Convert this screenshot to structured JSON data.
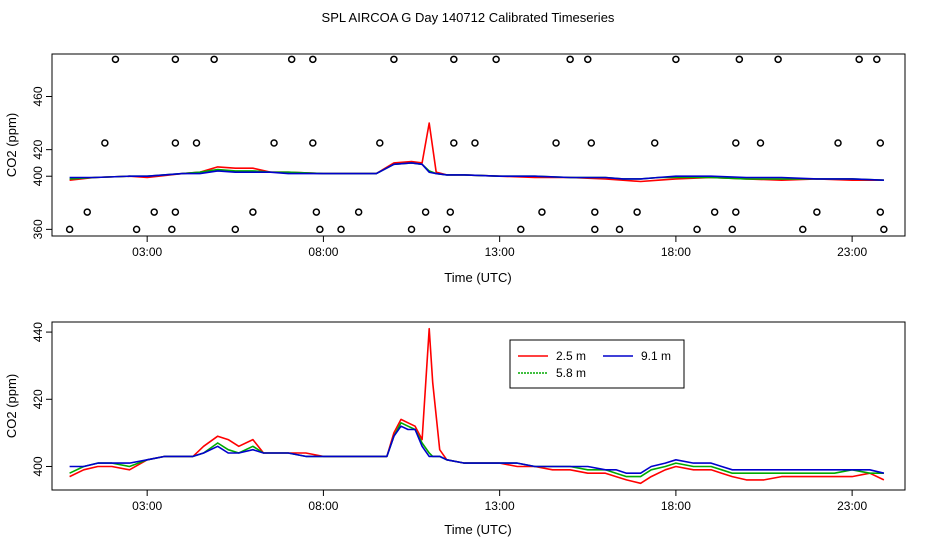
{
  "figure": {
    "title": "SPL AIRCOA G  Day 140712  Calibrated Timeseries"
  },
  "chart_data": [
    {
      "type": "scatter+line",
      "xlabel": "Time (UTC)",
      "ylabel": "CO2 (ppm)",
      "xlim": [
        0.3,
        24.5
      ],
      "ylim": [
        355,
        492
      ],
      "xticks": [
        {
          "value": 3,
          "label": "03:00"
        },
        {
          "value": 8,
          "label": "08:00"
        },
        {
          "value": 13,
          "label": "13:00"
        },
        {
          "value": 18,
          "label": "18:00"
        },
        {
          "value": 23,
          "label": "23:00"
        }
      ],
      "yticks": [
        {
          "value": 360,
          "label": "360"
        },
        {
          "value": 400,
          "label": "400"
        },
        {
          "value": 420,
          "label": "420"
        },
        {
          "value": 460,
          "label": "460"
        }
      ],
      "calibration_points": [
        [
          0.8,
          360
        ],
        [
          1.3,
          373
        ],
        [
          1.8,
          425
        ],
        [
          2.1,
          488
        ],
        [
          2.7,
          360
        ],
        [
          3.2,
          373
        ],
        [
          3.7,
          360
        ],
        [
          3.8,
          373
        ],
        [
          3.8,
          425
        ],
        [
          3.8,
          488
        ],
        [
          4.4,
          425
        ],
        [
          4.9,
          488
        ],
        [
          5.5,
          360
        ],
        [
          6.0,
          373
        ],
        [
          6.6,
          425
        ],
        [
          7.1,
          488
        ],
        [
          7.7,
          488
        ],
        [
          7.7,
          425
        ],
        [
          7.8,
          373
        ],
        [
          7.9,
          360
        ],
        [
          8.5,
          360
        ],
        [
          9.0,
          373
        ],
        [
          9.6,
          425
        ],
        [
          10.0,
          488
        ],
        [
          10.5,
          360
        ],
        [
          10.9,
          373
        ],
        [
          11.5,
          360
        ],
        [
          11.6,
          373
        ],
        [
          11.7,
          425
        ],
        [
          11.7,
          488
        ],
        [
          12.3,
          425
        ],
        [
          12.9,
          488
        ],
        [
          13.6,
          360
        ],
        [
          14.2,
          373
        ],
        [
          14.6,
          425
        ],
        [
          15.0,
          488
        ],
        [
          15.5,
          488
        ],
        [
          15.6,
          425
        ],
        [
          15.7,
          373
        ],
        [
          15.7,
          360
        ],
        [
          16.4,
          360
        ],
        [
          16.9,
          373
        ],
        [
          17.4,
          425
        ],
        [
          18.0,
          488
        ],
        [
          18.6,
          360
        ],
        [
          19.1,
          373
        ],
        [
          19.6,
          360
        ],
        [
          19.7,
          373
        ],
        [
          19.7,
          425
        ],
        [
          19.8,
          488
        ],
        [
          20.4,
          425
        ],
        [
          20.9,
          488
        ],
        [
          21.6,
          360
        ],
        [
          22.0,
          373
        ],
        [
          22.6,
          425
        ],
        [
          23.2,
          488
        ],
        [
          23.7,
          488
        ],
        [
          23.8,
          425
        ],
        [
          23.8,
          373
        ],
        [
          23.9,
          360
        ]
      ],
      "series": [
        {
          "name": "2.5 m",
          "color": "#ff0000",
          "x": [
            0.8,
            1.5,
            2.5,
            3.0,
            4.0,
            4.5,
            5.0,
            5.5,
            6.0,
            6.5,
            7.0,
            8.0,
            9.0,
            9.5,
            10.0,
            10.5,
            10.8,
            11.0,
            11.2,
            11.5,
            12.0,
            13.0,
            14.0,
            15.0,
            16.0,
            16.5,
            17.0,
            17.5,
            18.0,
            19.0,
            20.0,
            21.0,
            22.0,
            23.0,
            23.9
          ],
          "y": [
            397,
            399,
            400,
            399,
            402,
            403,
            407,
            406,
            406,
            403,
            403,
            402,
            402,
            402,
            410,
            411,
            410,
            440,
            403,
            401,
            401,
            400,
            399,
            399,
            398,
            397,
            396,
            397,
            398,
            399,
            398,
            397,
            398,
            397,
            397
          ]
        },
        {
          "name": "5.8 m",
          "color": "#00aa00",
          "x": [
            0.8,
            1.5,
            2.5,
            3.0,
            4.0,
            4.5,
            5.0,
            5.5,
            6.0,
            6.5,
            7.0,
            8.0,
            9.0,
            9.5,
            10.0,
            10.5,
            10.8,
            11.0,
            11.2,
            11.5,
            12.0,
            13.0,
            14.0,
            15.0,
            16.0,
            16.5,
            17.0,
            17.5,
            18.0,
            19.0,
            20.0,
            21.0,
            22.0,
            23.0,
            23.9
          ],
          "y": [
            398,
            399,
            400,
            400,
            402,
            403,
            405,
            404,
            404,
            403,
            403,
            402,
            402,
            402,
            409,
            410,
            409,
            404,
            402,
            401,
            401,
            400,
            400,
            399,
            399,
            398,
            398,
            399,
            399,
            399,
            398,
            398,
            398,
            398,
            397
          ]
        },
        {
          "name": "9.1 m",
          "color": "#0000cc",
          "x": [
            0.8,
            1.5,
            2.5,
            3.0,
            4.0,
            4.5,
            5.0,
            5.5,
            6.0,
            6.5,
            7.0,
            8.0,
            9.0,
            9.5,
            10.0,
            10.5,
            10.8,
            11.0,
            11.2,
            11.5,
            12.0,
            13.0,
            14.0,
            15.0,
            16.0,
            16.5,
            17.0,
            17.5,
            18.0,
            19.0,
            20.0,
            21.0,
            22.0,
            23.0,
            23.9
          ],
          "y": [
            399,
            399,
            400,
            400,
            402,
            402,
            404,
            403,
            403,
            403,
            402,
            402,
            402,
            402,
            409,
            410,
            409,
            403,
            402,
            401,
            401,
            400,
            400,
            399,
            399,
            398,
            398,
            399,
            400,
            400,
            399,
            399,
            398,
            398,
            397
          ]
        }
      ]
    },
    {
      "type": "line",
      "xlabel": "Time (UTC)",
      "ylabel": "CO2 (ppm)",
      "xlim": [
        0.3,
        24.5
      ],
      "ylim": [
        393,
        443
      ],
      "xticks": [
        {
          "value": 3,
          "label": "03:00"
        },
        {
          "value": 8,
          "label": "08:00"
        },
        {
          "value": 13,
          "label": "13:00"
        },
        {
          "value": 18,
          "label": "18:00"
        },
        {
          "value": 23,
          "label": "23:00"
        }
      ],
      "yticks": [
        {
          "value": 400,
          "label": "400"
        },
        {
          "value": 420,
          "label": "420"
        },
        {
          "value": 440,
          "label": "440"
        }
      ],
      "legend": {
        "position": "top-center",
        "entries": [
          "2.5 m",
          "9.1 m",
          "5.8 m"
        ]
      },
      "series": [
        {
          "name": "2.5 m",
          "color": "#ff0000",
          "x": [
            0.8,
            1.2,
            1.6,
            2.0,
            2.5,
            3.0,
            3.5,
            4.0,
            4.3,
            4.6,
            5.0,
            5.3,
            5.6,
            6.0,
            6.3,
            6.6,
            7.0,
            7.5,
            8.0,
            8.5,
            9.0,
            9.5,
            9.8,
            10.0,
            10.2,
            10.4,
            10.6,
            10.8,
            11.0,
            11.1,
            11.3,
            11.5,
            12.0,
            12.5,
            13.0,
            13.5,
            14.0,
            14.5,
            15.0,
            15.5,
            16.0,
            16.3,
            16.6,
            17.0,
            17.3,
            17.7,
            18.0,
            18.5,
            19.0,
            19.3,
            19.6,
            20.0,
            20.5,
            21.0,
            21.5,
            22.0,
            22.5,
            23.0,
            23.5,
            23.9
          ],
          "y": [
            397,
            399,
            400,
            400,
            399,
            402,
            403,
            403,
            403,
            406,
            409,
            408,
            406,
            408,
            404,
            404,
            404,
            404,
            403,
            403,
            403,
            403,
            403,
            410,
            414,
            413,
            412,
            408,
            441,
            425,
            405,
            402,
            401,
            401,
            401,
            400,
            400,
            399,
            399,
            398,
            398,
            397,
            396,
            395,
            397,
            399,
            400,
            399,
            399,
            398,
            397,
            396,
            396,
            397,
            397,
            397,
            397,
            397,
            398,
            396
          ]
        },
        {
          "name": "5.8 m",
          "color": "#00aa00",
          "x": [
            0.8,
            1.2,
            1.6,
            2.0,
            2.5,
            3.0,
            3.5,
            4.0,
            4.3,
            4.6,
            5.0,
            5.3,
            5.6,
            6.0,
            6.3,
            6.6,
            7.0,
            7.5,
            8.0,
            8.5,
            9.0,
            9.5,
            9.8,
            10.0,
            10.2,
            10.4,
            10.6,
            10.8,
            11.0,
            11.1,
            11.3,
            11.5,
            12.0,
            12.5,
            13.0,
            13.5,
            14.0,
            14.5,
            15.0,
            15.5,
            16.0,
            16.3,
            16.6,
            17.0,
            17.3,
            17.7,
            18.0,
            18.5,
            19.0,
            19.3,
            19.6,
            20.0,
            20.5,
            21.0,
            21.5,
            22.0,
            22.5,
            23.0,
            23.5,
            23.9
          ],
          "y": [
            398,
            400,
            401,
            401,
            400,
            402,
            403,
            403,
            403,
            404,
            407,
            405,
            404,
            406,
            404,
            404,
            404,
            403,
            403,
            403,
            403,
            403,
            403,
            409,
            413,
            412,
            411,
            407,
            404,
            403,
            403,
            402,
            401,
            401,
            401,
            401,
            400,
            400,
            400,
            399,
            399,
            398,
            397,
            397,
            399,
            400,
            401,
            400,
            400,
            399,
            398,
            398,
            398,
            398,
            398,
            398,
            398,
            399,
            398,
            398
          ]
        },
        {
          "name": "9.1 m",
          "color": "#0000cc",
          "x": [
            0.8,
            1.2,
            1.6,
            2.0,
            2.5,
            3.0,
            3.5,
            4.0,
            4.3,
            4.6,
            5.0,
            5.3,
            5.6,
            6.0,
            6.3,
            6.6,
            7.0,
            7.5,
            8.0,
            8.5,
            9.0,
            9.5,
            9.8,
            10.0,
            10.2,
            10.4,
            10.6,
            10.8,
            11.0,
            11.1,
            11.3,
            11.5,
            12.0,
            12.5,
            13.0,
            13.5,
            14.0,
            14.5,
            15.0,
            15.5,
            16.0,
            16.3,
            16.6,
            17.0,
            17.3,
            17.7,
            18.0,
            18.5,
            19.0,
            19.3,
            19.6,
            20.0,
            20.5,
            21.0,
            21.5,
            22.0,
            22.5,
            23.0,
            23.5,
            23.9
          ],
          "y": [
            400,
            400,
            401,
            401,
            401,
            402,
            403,
            403,
            403,
            404,
            406,
            404,
            404,
            405,
            404,
            404,
            404,
            403,
            403,
            403,
            403,
            403,
            403,
            409,
            412,
            411,
            411,
            406,
            403,
            403,
            403,
            402,
            401,
            401,
            401,
            401,
            400,
            400,
            400,
            400,
            399,
            399,
            398,
            398,
            400,
            401,
            402,
            401,
            401,
            400,
            399,
            399,
            399,
            399,
            399,
            399,
            399,
            399,
            399,
            398
          ]
        }
      ]
    }
  ]
}
